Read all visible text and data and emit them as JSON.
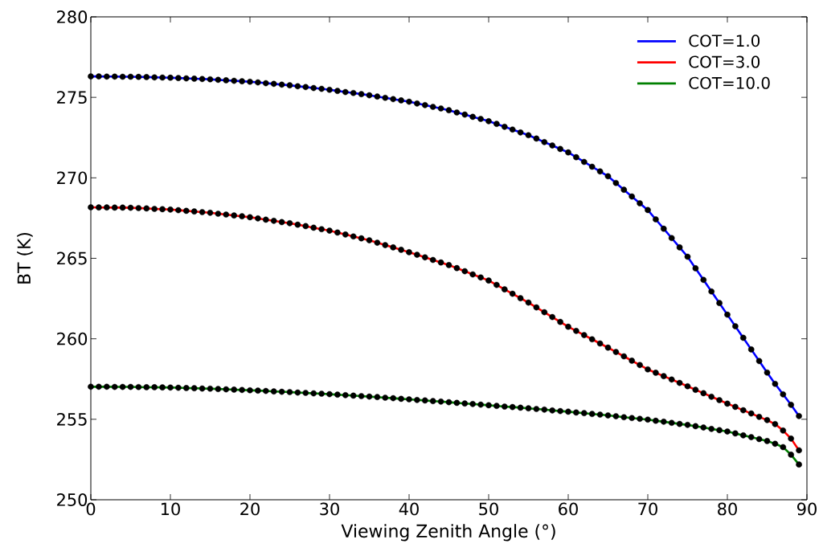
{
  "chart_data": {
    "type": "line",
    "xlabel": "Viewing Zenith Angle (°)",
    "ylabel": "BT (K)",
    "x": [
      0,
      1,
      2,
      3,
      4,
      5,
      6,
      7,
      8,
      9,
      10,
      11,
      12,
      13,
      14,
      15,
      16,
      17,
      18,
      19,
      20,
      21,
      22,
      23,
      24,
      25,
      26,
      27,
      28,
      29,
      30,
      31,
      32,
      33,
      34,
      35,
      36,
      37,
      38,
      39,
      40,
      41,
      42,
      43,
      44,
      45,
      46,
      47,
      48,
      49,
      50,
      51,
      52,
      53,
      54,
      55,
      56,
      57,
      58,
      59,
      60,
      61,
      62,
      63,
      64,
      65,
      66,
      67,
      68,
      69,
      70,
      71,
      72,
      73,
      74,
      75,
      76,
      77,
      78,
      79,
      80,
      81,
      82,
      83,
      84,
      85,
      86,
      87,
      88,
      89
    ],
    "series": [
      {
        "type": "scatter",
        "marker": "circle",
        "color": "#000000",
        "values": [
          276.3,
          276.3,
          276.29,
          276.29,
          276.28,
          276.28,
          276.27,
          276.26,
          276.24,
          276.23,
          276.22,
          276.2,
          276.18,
          276.16,
          276.14,
          276.12,
          276.09,
          276.06,
          276.03,
          276.0,
          275.97,
          275.93,
          275.88,
          275.84,
          275.79,
          275.75,
          275.69,
          275.64,
          275.58,
          275.53,
          275.47,
          275.4,
          275.33,
          275.27,
          275.2,
          275.13,
          275.05,
          274.97,
          274.89,
          274.81,
          274.73,
          274.62,
          274.52,
          274.41,
          274.31,
          274.2,
          274.06,
          273.93,
          273.79,
          273.66,
          273.52,
          273.35,
          273.17,
          273.0,
          272.82,
          272.65,
          272.44,
          272.22,
          272.01,
          271.79,
          271.58,
          271.28,
          270.99,
          270.69,
          270.4,
          270.1,
          269.68,
          269.26,
          268.84,
          268.42,
          268.0,
          267.42,
          266.84,
          266.26,
          265.68,
          265.1,
          264.38,
          263.66,
          262.94,
          262.22,
          261.5,
          260.78,
          260.06,
          259.34,
          258.62,
          257.9,
          257.2,
          256.55,
          255.9,
          255.2
        ]
      },
      {
        "type": "scatter",
        "marker": "circle",
        "color": "#000000",
        "values": [
          268.17,
          268.16,
          268.16,
          268.15,
          268.15,
          268.14,
          268.12,
          268.1,
          268.07,
          268.05,
          268.03,
          267.99,
          267.95,
          267.91,
          267.87,
          267.83,
          267.77,
          267.72,
          267.66,
          267.61,
          267.55,
          267.48,
          267.4,
          267.33,
          267.25,
          267.18,
          267.09,
          267.0,
          266.9,
          266.81,
          266.72,
          266.6,
          266.48,
          266.36,
          266.24,
          266.12,
          265.97,
          265.82,
          265.68,
          265.53,
          265.38,
          265.22,
          265.06,
          264.9,
          264.74,
          264.58,
          264.39,
          264.2,
          264.0,
          263.81,
          263.62,
          263.35,
          263.07,
          262.8,
          262.52,
          262.25,
          261.95,
          261.65,
          261.35,
          261.05,
          260.75,
          260.49,
          260.23,
          259.97,
          259.71,
          259.45,
          259.18,
          258.91,
          258.64,
          258.37,
          258.1,
          257.89,
          257.68,
          257.47,
          257.26,
          257.05,
          256.83,
          256.62,
          256.4,
          256.19,
          255.97,
          255.77,
          255.56,
          255.36,
          255.15,
          254.95,
          254.7,
          254.3,
          253.8,
          253.07
        ]
      },
      {
        "type": "scatter",
        "marker": "circle",
        "color": "#000000",
        "values": [
          257.02,
          257.02,
          257.02,
          257.01,
          257.01,
          257.01,
          257.0,
          256.99,
          256.99,
          256.98,
          256.97,
          256.96,
          256.94,
          256.93,
          256.91,
          256.9,
          256.88,
          256.86,
          256.84,
          256.82,
          256.8,
          256.78,
          256.76,
          256.73,
          256.71,
          256.69,
          256.66,
          256.64,
          256.61,
          256.59,
          256.56,
          256.53,
          256.5,
          256.47,
          256.44,
          256.41,
          256.38,
          256.34,
          256.31,
          256.27,
          256.24,
          256.2,
          256.17,
          256.13,
          256.1,
          256.06,
          256.02,
          255.98,
          255.95,
          255.91,
          255.87,
          255.83,
          255.79,
          255.76,
          255.72,
          255.68,
          255.64,
          255.6,
          255.55,
          255.51,
          255.47,
          255.42,
          255.38,
          255.33,
          255.29,
          255.24,
          255.19,
          255.13,
          255.08,
          255.03,
          254.98,
          254.91,
          254.85,
          254.78,
          254.71,
          254.65,
          254.57,
          254.49,
          254.4,
          254.32,
          254.24,
          254.12,
          254.0,
          253.89,
          253.77,
          253.65,
          253.48,
          253.27,
          252.8,
          252.19
        ]
      },
      {
        "name": "COT=1.0",
        "color": "#0000ff",
        "values": [
          276.3,
          276.3,
          276.29,
          276.29,
          276.28,
          276.28,
          276.27,
          276.26,
          276.24,
          276.23,
          276.22,
          276.2,
          276.18,
          276.16,
          276.14,
          276.12,
          276.09,
          276.06,
          276.03,
          276.0,
          275.97,
          275.93,
          275.88,
          275.84,
          275.79,
          275.75,
          275.69,
          275.64,
          275.58,
          275.53,
          275.47,
          275.4,
          275.33,
          275.27,
          275.2,
          275.13,
          275.05,
          274.97,
          274.89,
          274.81,
          274.73,
          274.62,
          274.52,
          274.41,
          274.31,
          274.2,
          274.06,
          273.93,
          273.79,
          273.66,
          273.52,
          273.35,
          273.17,
          273.0,
          272.82,
          272.65,
          272.44,
          272.22,
          272.01,
          271.79,
          271.58,
          271.28,
          270.99,
          270.69,
          270.4,
          270.1,
          269.68,
          269.26,
          268.84,
          268.42,
          268.0,
          267.42,
          266.84,
          266.26,
          265.68,
          265.1,
          264.38,
          263.66,
          262.94,
          262.22,
          261.5,
          260.78,
          260.06,
          259.34,
          258.62,
          257.9,
          257.2,
          256.55,
          255.9,
          255.2
        ]
      },
      {
        "name": "COT=3.0",
        "color": "#ff0000",
        "values": [
          268.17,
          268.16,
          268.16,
          268.15,
          268.15,
          268.14,
          268.12,
          268.1,
          268.07,
          268.05,
          268.03,
          267.99,
          267.95,
          267.91,
          267.87,
          267.83,
          267.77,
          267.72,
          267.66,
          267.61,
          267.55,
          267.48,
          267.4,
          267.33,
          267.25,
          267.18,
          267.09,
          267.0,
          266.9,
          266.81,
          266.72,
          266.6,
          266.48,
          266.36,
          266.24,
          266.12,
          265.97,
          265.82,
          265.68,
          265.53,
          265.38,
          265.22,
          265.06,
          264.9,
          264.74,
          264.58,
          264.39,
          264.2,
          264.0,
          263.81,
          263.62,
          263.35,
          263.07,
          262.8,
          262.52,
          262.25,
          261.95,
          261.65,
          261.35,
          261.05,
          260.75,
          260.49,
          260.23,
          259.97,
          259.71,
          259.45,
          259.18,
          258.91,
          258.64,
          258.37,
          258.1,
          257.89,
          257.68,
          257.47,
          257.26,
          257.05,
          256.83,
          256.62,
          256.4,
          256.19,
          255.97,
          255.77,
          255.56,
          255.36,
          255.15,
          254.95,
          254.7,
          254.3,
          253.8,
          253.07
        ]
      },
      {
        "name": "COT=10.0",
        "color": "#008000",
        "values": [
          257.02,
          257.02,
          257.02,
          257.01,
          257.01,
          257.01,
          257.0,
          256.99,
          256.99,
          256.98,
          256.97,
          256.96,
          256.94,
          256.93,
          256.91,
          256.9,
          256.88,
          256.86,
          256.84,
          256.82,
          256.8,
          256.78,
          256.76,
          256.73,
          256.71,
          256.69,
          256.66,
          256.64,
          256.61,
          256.59,
          256.56,
          256.53,
          256.5,
          256.47,
          256.44,
          256.41,
          256.38,
          256.34,
          256.31,
          256.27,
          256.24,
          256.2,
          256.17,
          256.13,
          256.1,
          256.06,
          256.02,
          255.98,
          255.95,
          255.91,
          255.87,
          255.83,
          255.79,
          255.76,
          255.72,
          255.68,
          255.64,
          255.6,
          255.55,
          255.51,
          255.47,
          255.42,
          255.38,
          255.33,
          255.29,
          255.24,
          255.19,
          255.13,
          255.08,
          255.03,
          254.98,
          254.91,
          254.85,
          254.78,
          254.71,
          254.65,
          254.57,
          254.49,
          254.4,
          254.32,
          254.24,
          254.12,
          254.0,
          253.89,
          253.77,
          253.65,
          253.48,
          253.27,
          252.8,
          252.19
        ]
      }
    ],
    "xlim": [
      0,
      90
    ],
    "ylim": [
      250,
      280
    ],
    "xticks": [
      0,
      10,
      20,
      30,
      40,
      50,
      60,
      70,
      80,
      90
    ],
    "yticks": [
      250,
      255,
      260,
      265,
      270,
      275,
      280
    ],
    "grid": false,
    "legend": "top right"
  }
}
